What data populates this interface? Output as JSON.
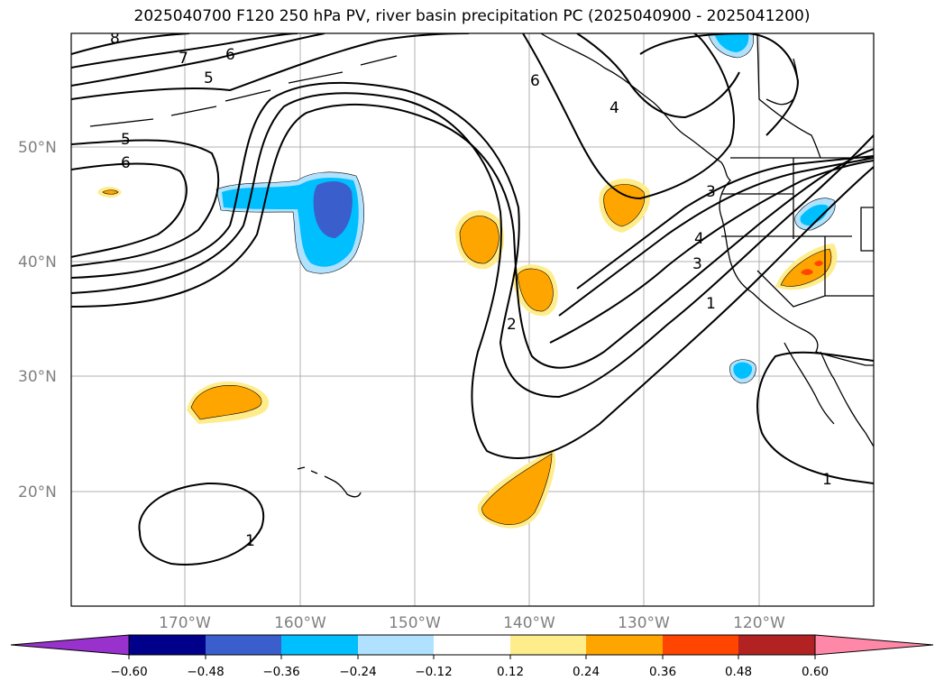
{
  "title": "2025040700 F120 250 hPa PV, river basin precipitation PC (2025040900 - 2025041200)",
  "map": {
    "lon_range_deg": [
      -180,
      -110
    ],
    "lat_range_deg": [
      10,
      60
    ],
    "lat_ticks": [
      "20°N",
      "30°N",
      "40°N",
      "50°N"
    ],
    "lon_ticks": [
      "170°W",
      "160°W",
      "150°W",
      "140°W",
      "130°W",
      "120°W"
    ],
    "gridlines": true,
    "contour_levels_pv": [
      "8",
      "7",
      "6",
      "5",
      "5",
      "6",
      "6",
      "4",
      "3",
      "3",
      "2",
      "1",
      "1",
      "1",
      "4"
    ]
  },
  "colorbar": {
    "ticks": [
      "−0.60",
      "−0.48",
      "−0.36",
      "−0.24",
      "−0.12",
      "0.12",
      "0.24",
      "0.36",
      "0.48",
      "0.60"
    ],
    "colors": [
      "#9932cc",
      "#00008b",
      "#3a5fcd",
      "#00bfff",
      "#b0e2ff",
      "#ffffff",
      "#ffec8b",
      "#ffa500",
      "#ff4500",
      "#b22222",
      "#ff88a8"
    ]
  }
}
